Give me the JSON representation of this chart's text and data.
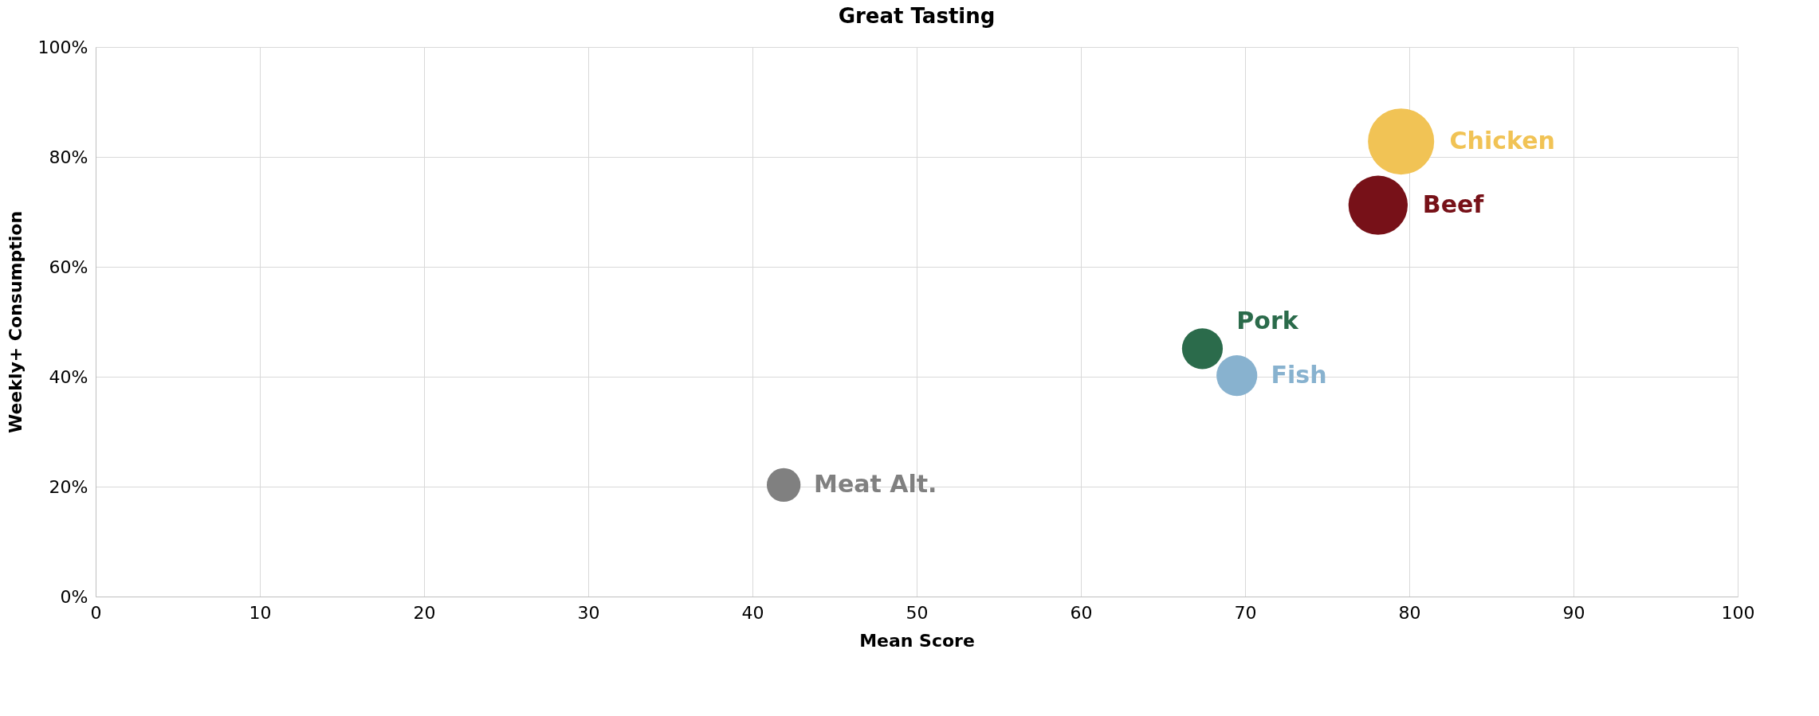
{
  "chart_data": {
    "type": "bubble",
    "title": "Great Tasting",
    "xlabel": "Mean Score",
    "ylabel": "Weekly+ Consumption",
    "series": [
      {
        "name": "Chicken",
        "color": "#f1c355",
        "x": [
          79.5
        ],
        "values": [
          82.8
        ],
        "sizes": [
          1
        ]
      },
      {
        "name": "Beef",
        "color": "#771118",
        "x": [
          78.1
        ],
        "values": [
          71.2
        ],
        "sizes": [
          0.8
        ]
      },
      {
        "name": "Pork",
        "color": "#2b6b4b",
        "x": [
          67.4
        ],
        "values": [
          45.1
        ],
        "sizes": [
          0.38
        ]
      },
      {
        "name": "Fish",
        "color": "#88b2cf",
        "x": [
          69.5
        ],
        "values": [
          40.2
        ],
        "sizes": [
          0.38
        ]
      },
      {
        "name": "Meat Alt.",
        "color": "#808080",
        "x": [
          41.9
        ],
        "values": [
          20.3
        ],
        "sizes": [
          0.26
        ]
      }
    ],
    "xlim": [
      0,
      100
    ],
    "xticks": [
      0,
      10,
      20,
      30,
      40,
      50,
      60,
      70,
      80,
      90,
      100
    ],
    "ylim": [
      0,
      100
    ],
    "yticks": [
      {
        "value": 0,
        "label": "0%"
      },
      {
        "value": 20,
        "label": "20%"
      },
      {
        "value": 40,
        "label": "40%"
      },
      {
        "value": 60,
        "label": "60%"
      },
      {
        "value": 80,
        "label": "80%"
      },
      {
        "value": 100,
        "label": "100%"
      }
    ],
    "grid": true,
    "legend": false
  }
}
